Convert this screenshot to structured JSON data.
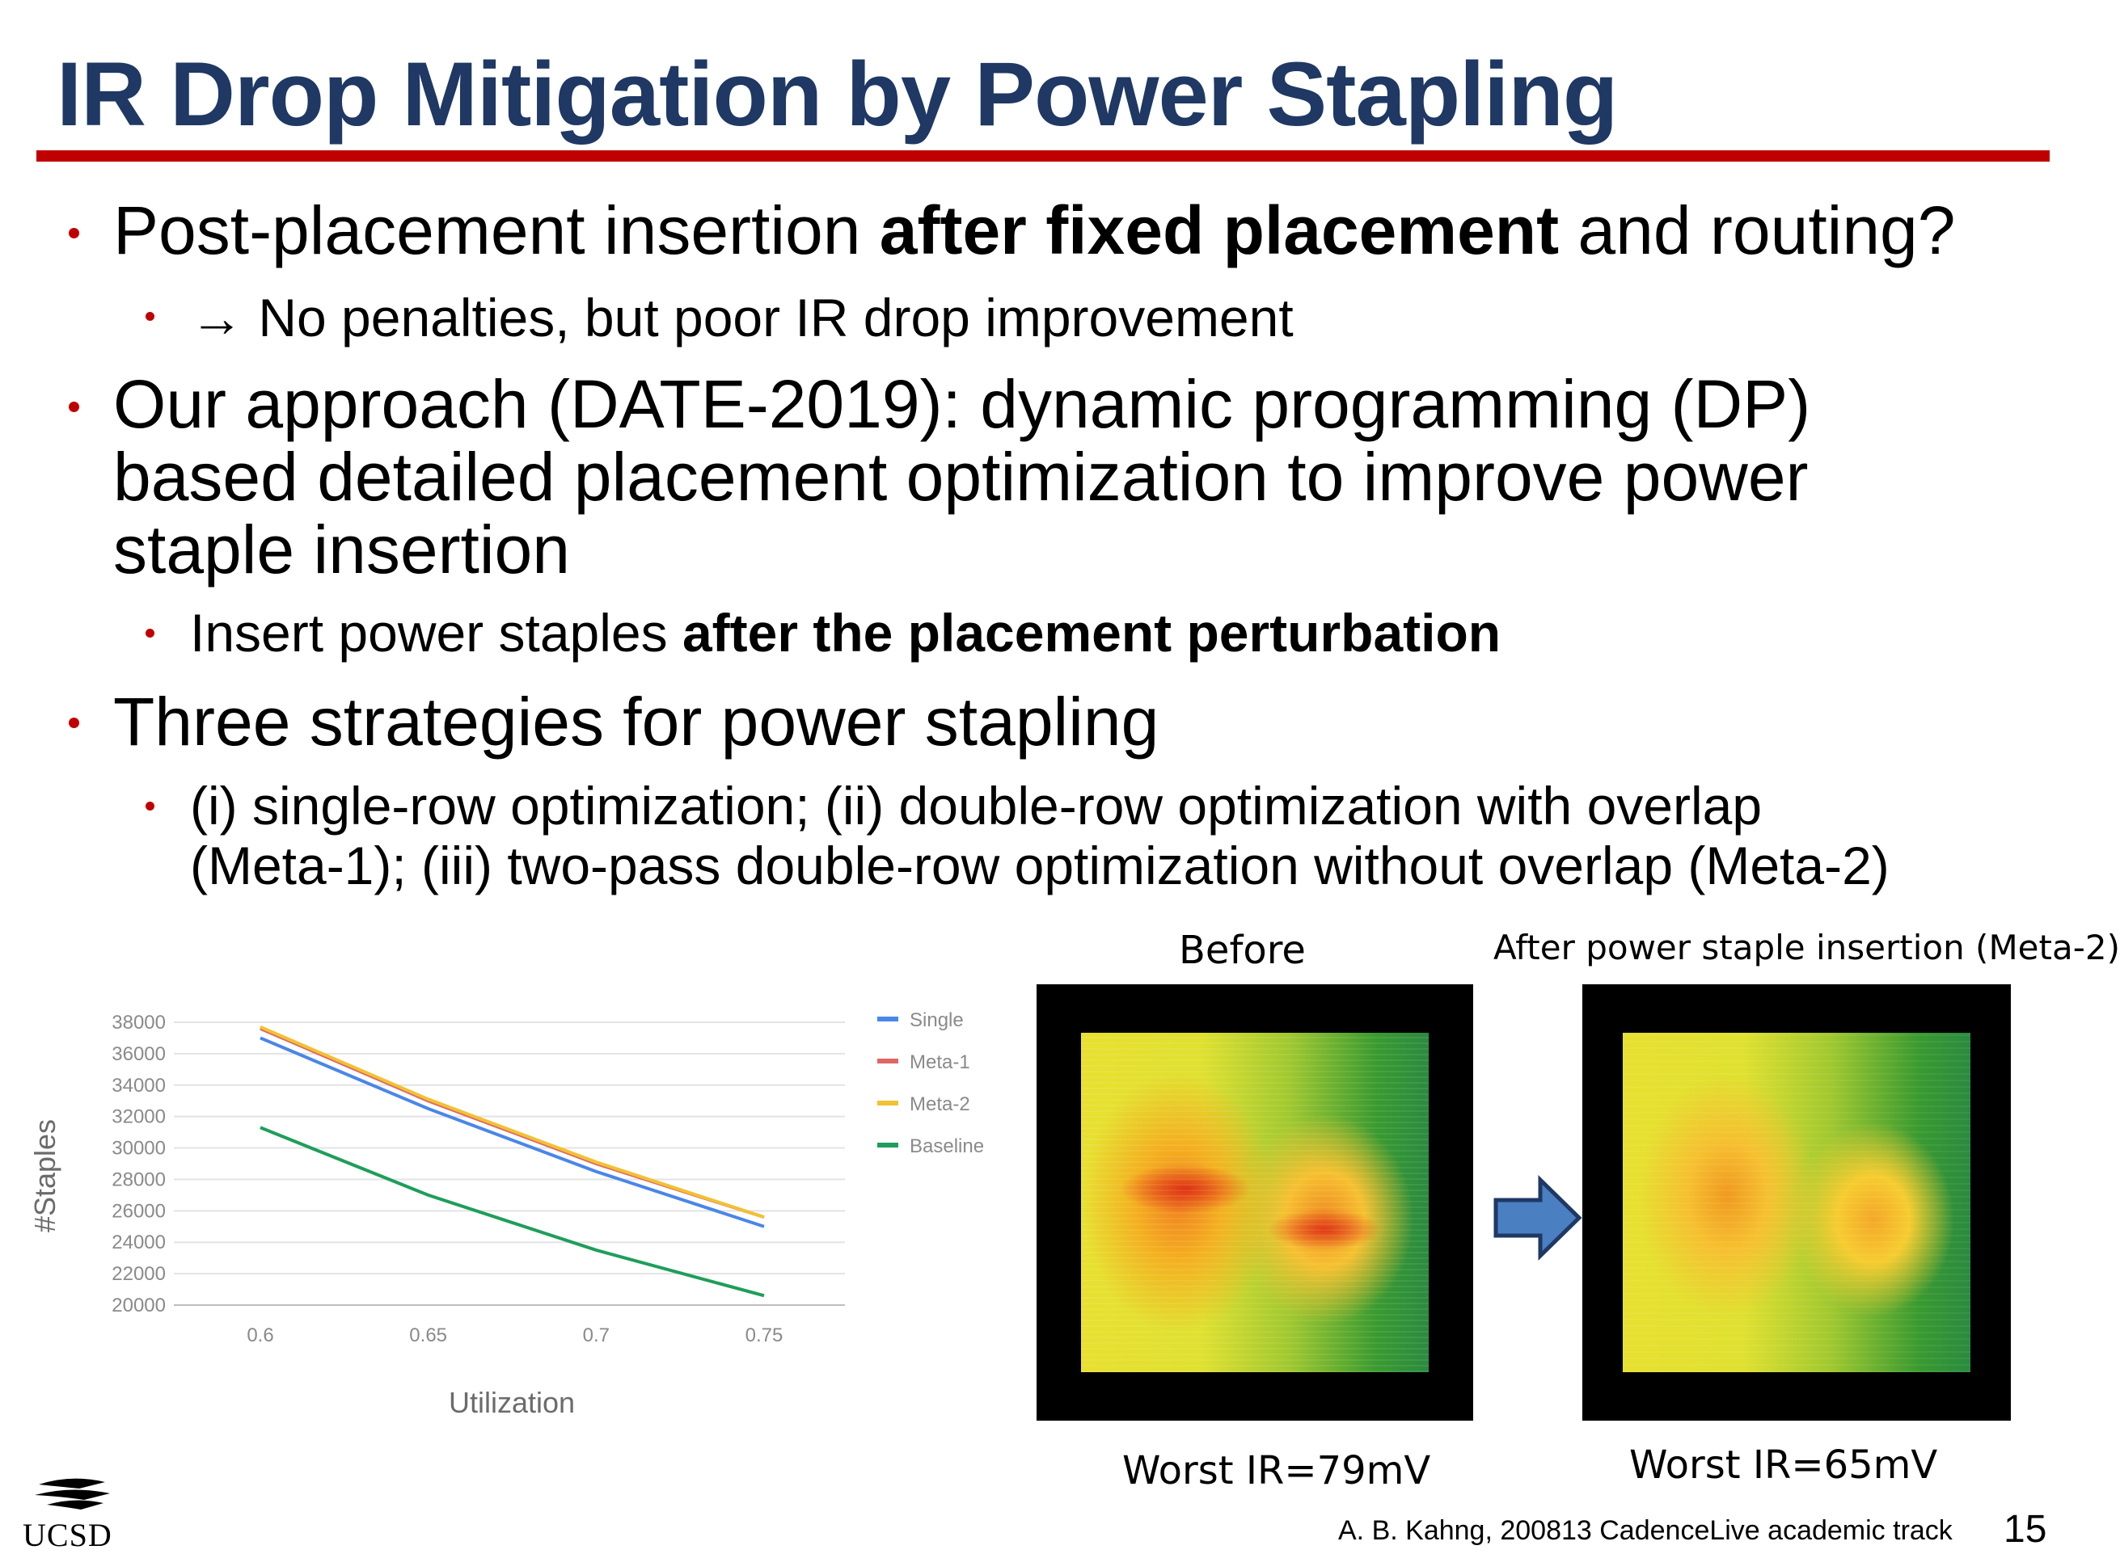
{
  "slide": {
    "title": "IR Drop Mitigation by Power Stapling",
    "page_number": "15",
    "footer": "A. B. Kahng, 200813 CadenceLive academic track",
    "logo_text": "UCSD"
  },
  "bullets": {
    "b1": {
      "pre": "Post-placement insertion ",
      "bold": "after fixed placement",
      "post": " and routing?"
    },
    "b1_1": "→ No penalties, but poor IR drop improvement",
    "b2_line1": "Our approach (DATE-2019): dynamic programming (DP)",
    "b2_line2": "based detailed placement optimization to improve power",
    "b2_line3": "staple insertion",
    "b2_1": {
      "pre": "Insert power staples ",
      "bold": "after the placement perturbation"
    },
    "b3": "Three strategies for power stapling",
    "b3_1_line1": "(i) single-row optimization; (ii) double-row optimization with overlap",
    "b3_1_line2": "(Meta-1); (iii) two-pass double-row optimization without overlap (Meta-2)"
  },
  "chart_data": {
    "type": "line",
    "x": [
      0.6,
      0.65,
      0.7,
      0.75
    ],
    "x_tick_labels": [
      "0.6",
      "0.65",
      "0.7",
      "0.75"
    ],
    "y_ticks": [
      20000,
      22000,
      24000,
      26000,
      28000,
      30000,
      32000,
      34000,
      36000,
      38000
    ],
    "ylim": [
      20000,
      38000
    ],
    "xlabel": "Utilization",
    "ylabel": "#Staples",
    "grid": true,
    "legend_position": "right",
    "series": [
      {
        "name": "Single",
        "color": "#4a86e8",
        "values": [
          37000,
          32500,
          28500,
          25000
        ]
      },
      {
        "name": "Meta-1",
        "color": "#e06666",
        "values": [
          37600,
          33000,
          29000,
          25600
        ]
      },
      {
        "name": "Meta-2",
        "color": "#f1c232",
        "values": [
          37700,
          33100,
          29100,
          25600
        ]
      },
      {
        "name": "Baseline",
        "color": "#1e9e5a",
        "values": [
          31300,
          27000,
          23500,
          20600
        ]
      }
    ]
  },
  "figures": {
    "before_label": "Before",
    "after_label": "After power staple insertion (Meta-2)",
    "before_result": "Worst IR=79mV",
    "after_result": "Worst IR=65mV",
    "arrow_color": "#4a7fc1"
  }
}
